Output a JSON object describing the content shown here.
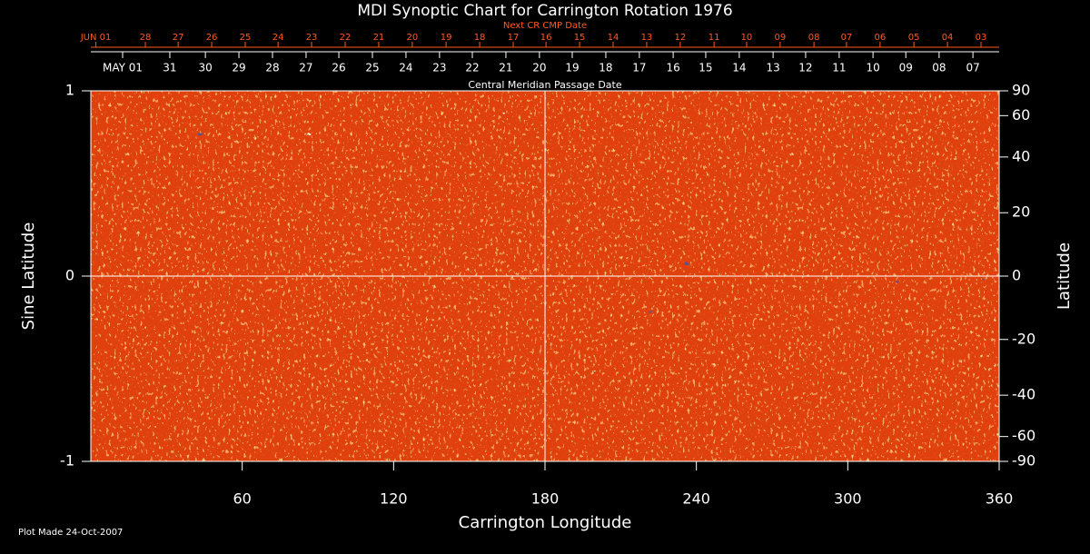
{
  "chart_data": {
    "type": "synoptic-map",
    "title": "MDI Synoptic Chart for Carrington Rotation 1976",
    "top_axis_title": "Next CR CMP Date",
    "second_axis_title": "Central Meridian Passage Date",
    "x_label": "Carrington Longitude",
    "y_label": "Sine Latitude",
    "y2_label": "Latitude",
    "footnote": "Plot Made 24-Oct-2007",
    "xlim": [
      0,
      360
    ],
    "xticks": [
      60,
      120,
      180,
      240,
      300,
      360
    ],
    "ylim": [
      -1,
      1
    ],
    "yticks": [
      -1,
      0,
      1
    ],
    "y2lim": [
      -90,
      90
    ],
    "y2_scale": "sine",
    "y2ticks": [
      90,
      60,
      40,
      20,
      0,
      -20,
      -40,
      -60,
      -90
    ],
    "center_lines": {
      "x": 180,
      "y": 0
    },
    "next_cmp_dates": [
      {
        "value": 2,
        "label": "JUN 01"
      },
      {
        "value": 21.6,
        "label": "28"
      },
      {
        "value": 34.6,
        "label": "27"
      },
      {
        "value": 47.9,
        "label": "26"
      },
      {
        "value": 61.2,
        "label": "25"
      },
      {
        "value": 74.2,
        "label": "24"
      },
      {
        "value": 87.5,
        "label": "23"
      },
      {
        "value": 100.8,
        "label": "22"
      },
      {
        "value": 114.1,
        "label": "21"
      },
      {
        "value": 127.4,
        "label": "20"
      },
      {
        "value": 140.8,
        "label": "19"
      },
      {
        "value": 154.1,
        "label": "18"
      },
      {
        "value": 167.4,
        "label": "17"
      },
      {
        "value": 180.4,
        "label": "16"
      },
      {
        "value": 193.7,
        "label": "15"
      },
      {
        "value": 207,
        "label": "14"
      },
      {
        "value": 220.3,
        "label": "13"
      },
      {
        "value": 233.6,
        "label": "12"
      },
      {
        "value": 247,
        "label": "11"
      },
      {
        "value": 259.9,
        "label": "10"
      },
      {
        "value": 273.2,
        "label": "09"
      },
      {
        "value": 286.6,
        "label": "08"
      },
      {
        "value": 299.5,
        "label": "07"
      },
      {
        "value": 312.8,
        "label": "06"
      },
      {
        "value": 326.2,
        "label": "05"
      },
      {
        "value": 339.5,
        "label": "04"
      },
      {
        "value": 352.8,
        "label": "03"
      }
    ],
    "cmp_dates": [
      {
        "value": 12.6,
        "label": "MAY 01"
      },
      {
        "value": 31.3,
        "label": "31"
      },
      {
        "value": 45.4,
        "label": "30"
      },
      {
        "value": 58.7,
        "label": "29"
      },
      {
        "value": 72,
        "label": "28"
      },
      {
        "value": 85.3,
        "label": "27"
      },
      {
        "value": 98.3,
        "label": "26"
      },
      {
        "value": 111.6,
        "label": "25"
      },
      {
        "value": 124.9,
        "label": "24"
      },
      {
        "value": 138.2,
        "label": "23"
      },
      {
        "value": 151.2,
        "label": "22"
      },
      {
        "value": 164.5,
        "label": "21"
      },
      {
        "value": 177.8,
        "label": "20"
      },
      {
        "value": 190.8,
        "label": "19"
      },
      {
        "value": 204.1,
        "label": "18"
      },
      {
        "value": 217.4,
        "label": "17"
      },
      {
        "value": 230.8,
        "label": "16"
      },
      {
        "value": 243.7,
        "label": "15"
      },
      {
        "value": 257,
        "label": "14"
      },
      {
        "value": 270.4,
        "label": "13"
      },
      {
        "value": 283.3,
        "label": "12"
      },
      {
        "value": 296.6,
        "label": "11"
      },
      {
        "value": 310,
        "label": "10"
      },
      {
        "value": 323,
        "label": "09"
      },
      {
        "value": 336.2,
        "label": "08"
      },
      {
        "value": 349.6,
        "label": "07"
      }
    ],
    "colors": {
      "background": "#000000",
      "text": "#ffffff",
      "next_dates": "#ff5a1e",
      "field": "#e0400c"
    }
  }
}
